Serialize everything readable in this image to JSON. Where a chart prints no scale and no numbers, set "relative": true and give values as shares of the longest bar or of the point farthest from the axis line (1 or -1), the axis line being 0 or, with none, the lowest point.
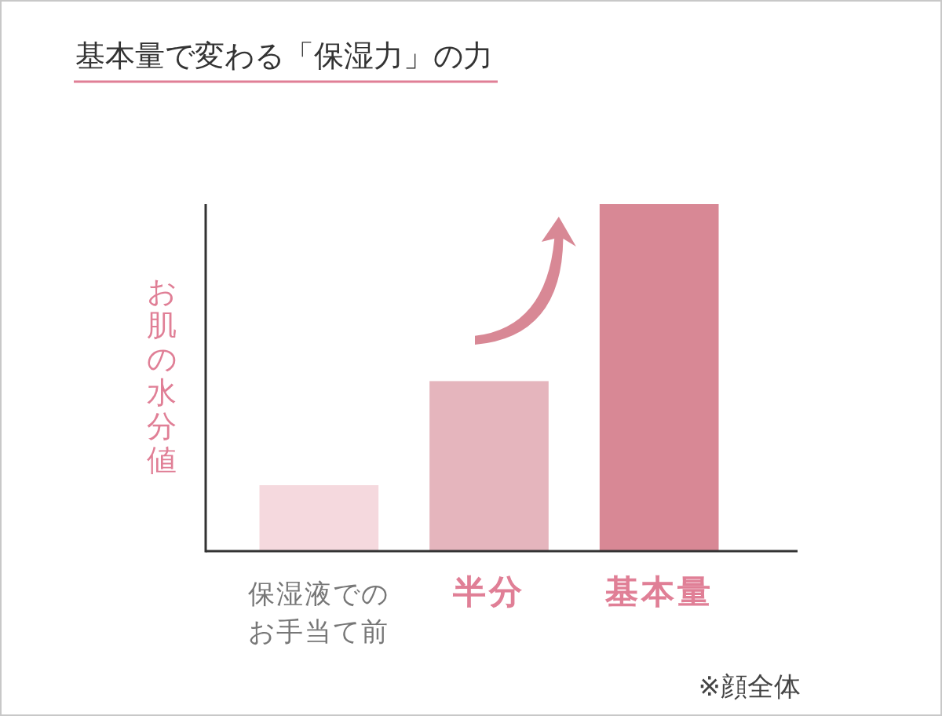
{
  "chart_data": {
    "type": "bar",
    "title": "基本量で変わる「保湿力」の力",
    "ylabel": "お肌の水分値",
    "categories": [
      "保湿液でのお手当て前",
      "半分",
      "基本量"
    ],
    "values": [
      0.19,
      0.49,
      1
    ],
    "colors": [
      "#f5d9de",
      "#e5b5bd",
      "#d88895"
    ],
    "relative": true,
    "annotations": [
      "※顔全体"
    ]
  }
}
